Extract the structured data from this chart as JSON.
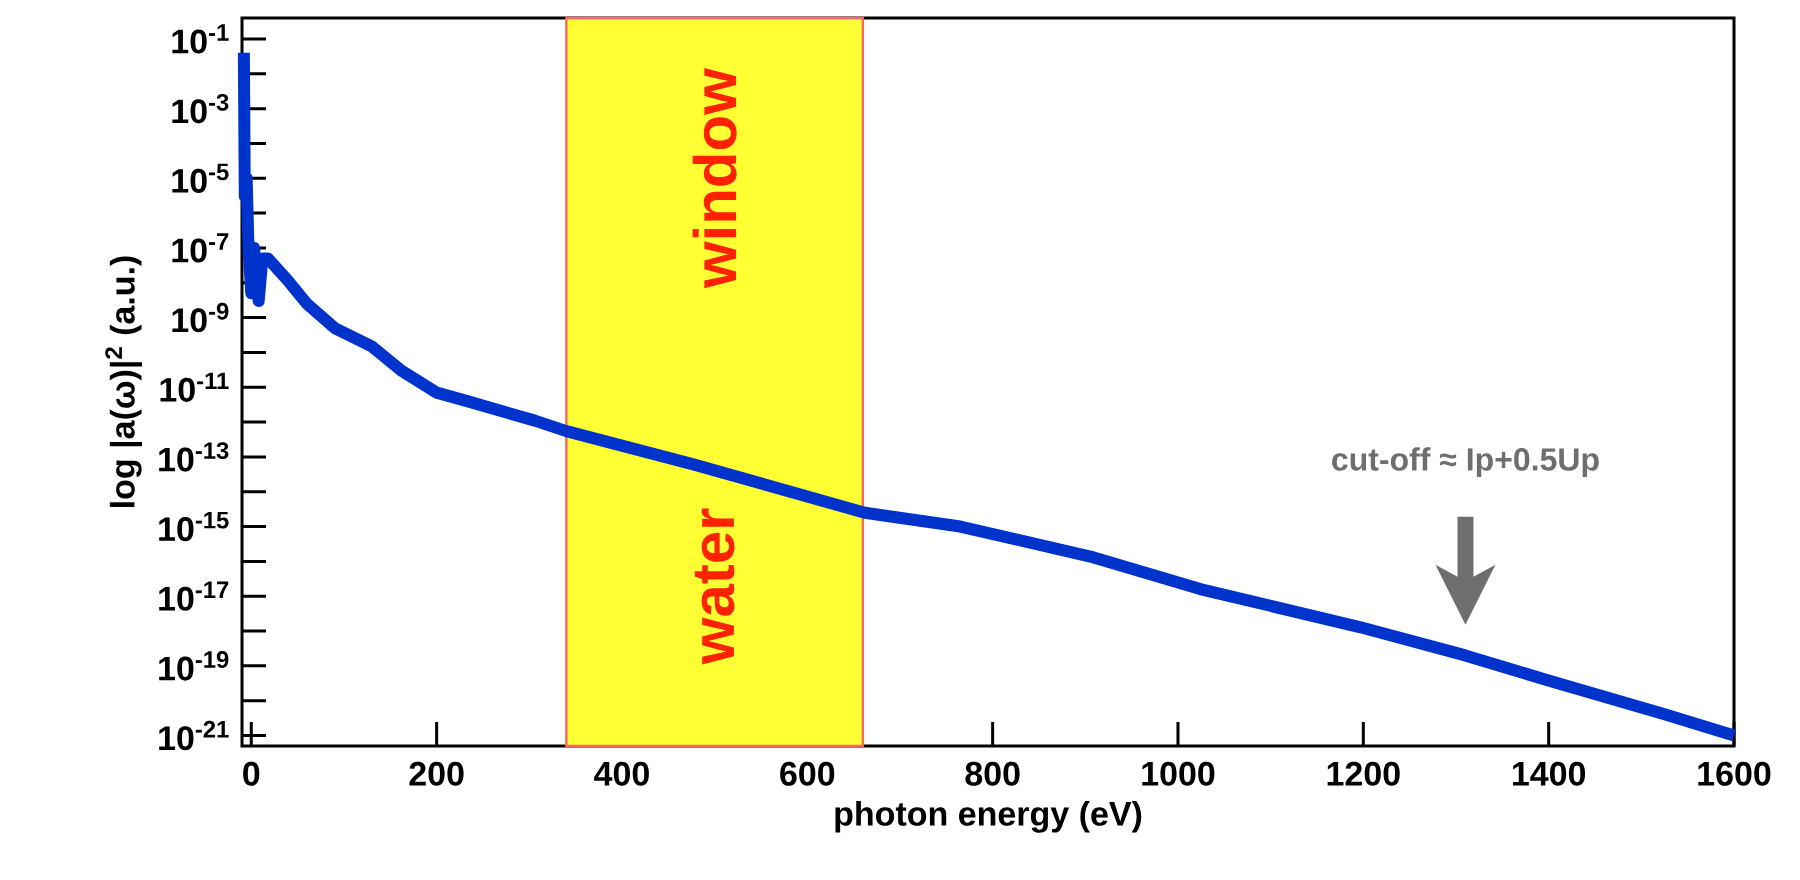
{
  "chart_data": {
    "type": "line",
    "xlabel": "photon energy (eV)",
    "ylabel": "log |a(ω)|$^{2}$ (a.u.)",
    "log": true,
    "grid": false,
    "xlim": [
      -10,
      1600
    ],
    "xticks": [
      0,
      200,
      400,
      600,
      800,
      1000,
      1200,
      1400,
      1600
    ],
    "ylim": [
      5e-22,
      0.4
    ],
    "yticks": [
      {
        "value": 0.1,
        "label": "10$^{-1}$"
      },
      {
        "value": 0.01,
        "label": null
      },
      {
        "value": 0.001,
        "label": "10$^{-3}$"
      },
      {
        "value": 0.0001,
        "label": null
      },
      {
        "value": 1e-05,
        "label": "10$^{-5}$"
      },
      {
        "value": 1e-06,
        "label": null
      },
      {
        "value": 1e-07,
        "label": "10$^{-7}$"
      },
      {
        "value": 1e-08,
        "label": null
      },
      {
        "value": 1e-09,
        "label": "10$^{-9}$"
      },
      {
        "value": 1e-10,
        "label": null
      },
      {
        "value": 1e-11,
        "label": "10$^{-11}$"
      },
      {
        "value": 1e-12,
        "label": null
      },
      {
        "value": 1e-13,
        "label": "10$^{-13}$"
      },
      {
        "value": 1e-14,
        "label": null
      },
      {
        "value": 1e-15,
        "label": "10$^{-15}$"
      },
      {
        "value": 1e-16,
        "label": null
      },
      {
        "value": 1e-17,
        "label": "10$^{-17}$"
      },
      {
        "value": 1e-18,
        "label": null
      },
      {
        "value": 1e-19,
        "label": "10$^{-19}$"
      },
      {
        "value": 1e-20,
        "label": null
      },
      {
        "value": 1e-21,
        "label": "10$^{-21}$"
      }
    ],
    "x": [
      -8,
      -7,
      -5,
      -3,
      0,
      3,
      8,
      12,
      18,
      39,
      60,
      90,
      130,
      162,
      200,
      233,
      306,
      340,
      478,
      662,
      765,
      909,
      1024,
      1196,
      1310,
      1397,
      1526,
      1600
    ],
    "series": [
      {
        "color": "#0033cc",
        "values": [
          0.04,
          3e-06,
          1e-05,
          1e-07,
          5e-09,
          1e-07,
          3e-09,
          5e-08,
          5e-08,
          1.2e-08,
          2.5e-09,
          5e-10,
          1.5e-10,
          3e-11,
          7e-12,
          4e-12,
          1.1e-12,
          5.5e-13,
          6e-14,
          2.5e-15,
          1e-15,
          1.3e-16,
          1.6e-17,
          1.3e-18,
          2e-19,
          4e-20,
          4e-21,
          1e-21
        ]
      }
    ],
    "bands": [
      {
        "axis": "x",
        "from": 340,
        "to": 660,
        "color": "#ffff33"
      }
    ],
    "annotations": [
      "water",
      "window",
      "cut-off ≈ Ip+0.5Up"
    ]
  }
}
